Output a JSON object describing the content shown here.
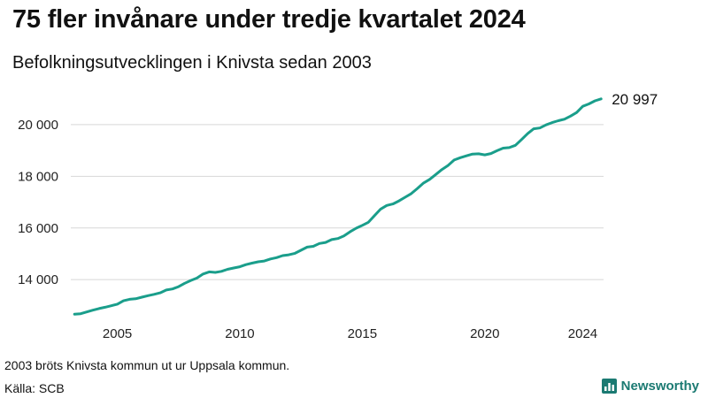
{
  "title": "75 fler invånare under tredje kvartalet 2024",
  "subtitle": "Befolkningsutvecklingen i Knivsta sedan 2003",
  "footnote": "2003 bröts Knivsta kommun ut ur Uppsala kommun.",
  "source": "Källa: SCB",
  "brand": "Newsworthy",
  "colors": {
    "line": "#1a9e8b",
    "grid": "#d7d7d7",
    "brand": "#1b7a72"
  },
  "chart_data": {
    "type": "line",
    "title": "75 fler invånare under tredje kvartalet 2024",
    "subtitle": "Befolkningsutvecklingen i Knivsta sedan 2003",
    "xlabel": "",
    "ylabel": "",
    "grid": true,
    "legend": "none",
    "x_ticks": [
      2005,
      2010,
      2015,
      2020,
      2024
    ],
    "y_ticks": [
      14000,
      16000,
      18000,
      20000
    ],
    "y_tick_labels": [
      "14 000",
      "16 000",
      "18 000",
      "20 000"
    ],
    "xlim": [
      2003.1,
      2024.85
    ],
    "ylim": [
      12500,
      21400
    ],
    "end_label": "20 997",
    "x": [
      2003.25,
      2003.5,
      2003.75,
      2004,
      2004.25,
      2004.5,
      2004.75,
      2005,
      2005.25,
      2005.5,
      2005.75,
      2006,
      2006.25,
      2006.5,
      2006.75,
      2007,
      2007.25,
      2007.5,
      2007.75,
      2008,
      2008.25,
      2008.5,
      2008.75,
      2009,
      2009.25,
      2009.5,
      2009.75,
      2010,
      2010.25,
      2010.5,
      2010.75,
      2011,
      2011.25,
      2011.5,
      2011.75,
      2012,
      2012.25,
      2012.5,
      2012.75,
      2013,
      2013.25,
      2013.5,
      2013.75,
      2014,
      2014.25,
      2014.5,
      2014.75,
      2015,
      2015.25,
      2015.5,
      2015.75,
      2016,
      2016.25,
      2016.5,
      2016.75,
      2017,
      2017.25,
      2017.5,
      2017.75,
      2018,
      2018.25,
      2018.5,
      2018.75,
      2019,
      2019.25,
      2019.5,
      2019.75,
      2020,
      2020.25,
      2020.5,
      2020.75,
      2021,
      2021.25,
      2021.5,
      2021.75,
      2022,
      2022.25,
      2022.5,
      2022.75,
      2023,
      2023.25,
      2023.5,
      2023.75,
      2024,
      2024.25,
      2024.5,
      2024.75
    ],
    "series": [
      {
        "values": [
          12660,
          12680,
          12750,
          12820,
          12880,
          12930,
          12990,
          13050,
          13180,
          13240,
          13260,
          13320,
          13380,
          13430,
          13490,
          13600,
          13640,
          13730,
          13860,
          13970,
          14060,
          14220,
          14300,
          14280,
          14320,
          14400,
          14450,
          14500,
          14580,
          14640,
          14690,
          14720,
          14800,
          14850,
          14930,
          14960,
          15020,
          15140,
          15260,
          15290,
          15400,
          15440,
          15550,
          15590,
          15690,
          15850,
          15990,
          16100,
          16220,
          16480,
          16730,
          16870,
          16930,
          17050,
          17190,
          17330,
          17530,
          17740,
          17880,
          18070,
          18260,
          18420,
          18630,
          18720,
          18790,
          18860,
          18870,
          18830,
          18880,
          18990,
          19090,
          19110,
          19200,
          19420,
          19650,
          19840,
          19870,
          19990,
          20080,
          20150,
          20210,
          20330,
          20470,
          20710,
          20800,
          20920,
          20997
        ]
      }
    ]
  }
}
